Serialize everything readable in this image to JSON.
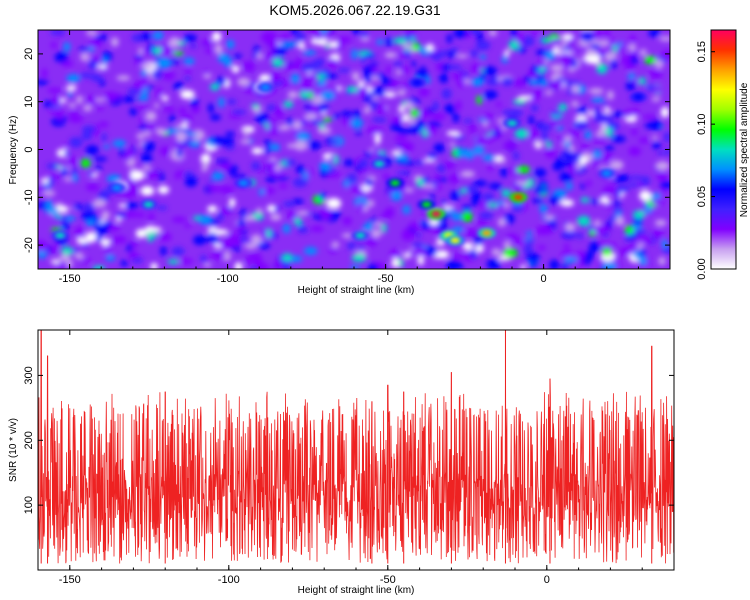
{
  "chart_data": [
    {
      "type": "heatmap",
      "title": "KOM5.2026.067.22.19.G31",
      "xlabel": "Height of straight line (km)",
      "ylabel": "Frequency (Hz)",
      "xlim": [
        -160,
        40
      ],
      "ylim": [
        -25,
        25
      ],
      "xticks": [
        -150,
        -100,
        -50,
        0
      ],
      "xtick_labels": [
        "-150",
        "-100",
        "-50",
        "0"
      ],
      "yticks": [
        20,
        10,
        0,
        -10,
        -20
      ],
      "ytick_labels": [
        "20",
        "10",
        "0",
        "-10",
        "-20"
      ],
      "colorbar": {
        "label": "Normalized spectral amplitude",
        "range": [
          0,
          0.165
        ],
        "ticks": [
          0,
          0.05,
          0.1,
          0.15
        ],
        "tick_labels": [
          "0.00",
          "0.05",
          "0.10",
          "0.15"
        ],
        "colors": [
          "#ffffff",
          "#c8a0f0",
          "#8000ff",
          "#4020ff",
          "#0000ff",
          "#0090ff",
          "#00e0c0",
          "#00ff00",
          "#a0ff00",
          "#ffff00",
          "#ffa000",
          "#ff3000",
          "#ff0060"
        ]
      },
      "features": [
        {
          "x": -37,
          "y": -11.5,
          "value": 0.1
        },
        {
          "x": -34,
          "y": -13.5,
          "value": 0.16
        },
        {
          "x": -30,
          "y": -18.0,
          "value": 0.13
        },
        {
          "x": -28,
          "y": -19.0,
          "value": 0.12
        },
        {
          "x": -18,
          "y": -17.5,
          "value": 0.14
        },
        {
          "x": -8,
          "y": -10.0,
          "value": 0.15
        },
        {
          "x": -47,
          "y": -7.0,
          "value": 0.09
        },
        {
          "x": -52,
          "y": -3.0,
          "value": 0.08
        },
        {
          "x": -10,
          "y": 5.5,
          "value": 0.08
        },
        {
          "x": -135,
          "y": -8.0,
          "value": 0.07
        },
        {
          "x": -125,
          "y": -11.5,
          "value": 0.08
        },
        {
          "x": -153,
          "y": -18.0,
          "value": 0.08
        },
        {
          "x": -95,
          "y": -7.0,
          "value": 0.07
        },
        {
          "x": -58,
          "y": -18.0,
          "value": 0.08
        },
        {
          "x": -88,
          "y": 13.0,
          "value": 0.07
        },
        {
          "x": -40,
          "y": 14.0,
          "value": 0.06
        },
        {
          "x": 20,
          "y": -5.0,
          "value": 0.07
        },
        {
          "x": 30,
          "y": 11.0,
          "value": 0.06
        }
      ]
    },
    {
      "type": "line",
      "series_color": "#ee2222",
      "xlabel": "Height of straight line (km)",
      "ylabel": "SNR (10 * v/v)",
      "xlim": [
        -160,
        40
      ],
      "ylim": [
        0,
        370
      ],
      "xticks": [
        -150,
        -100,
        -50,
        0
      ],
      "xtick_labels": [
        "-150",
        "-100",
        "-50",
        "0"
      ],
      "yticks": [
        100,
        200,
        300
      ],
      "ytick_labels": [
        "100",
        "200",
        "300"
      ],
      "summary": {
        "baseline_mean": 110,
        "typical_peak": 250,
        "max": 370,
        "min": 10
      },
      "notable_peaks": [
        {
          "x": -159,
          "y": 370
        },
        {
          "x": -157,
          "y": 330
        },
        {
          "x": -120,
          "y": 275
        },
        {
          "x": -55,
          "y": 260
        },
        {
          "x": -50,
          "y": 285
        },
        {
          "x": -45,
          "y": 275
        },
        {
          "x": -30,
          "y": 305
        },
        {
          "x": -13,
          "y": 370
        },
        {
          "x": 1,
          "y": 295
        },
        {
          "x": 33,
          "y": 345
        }
      ]
    }
  ]
}
